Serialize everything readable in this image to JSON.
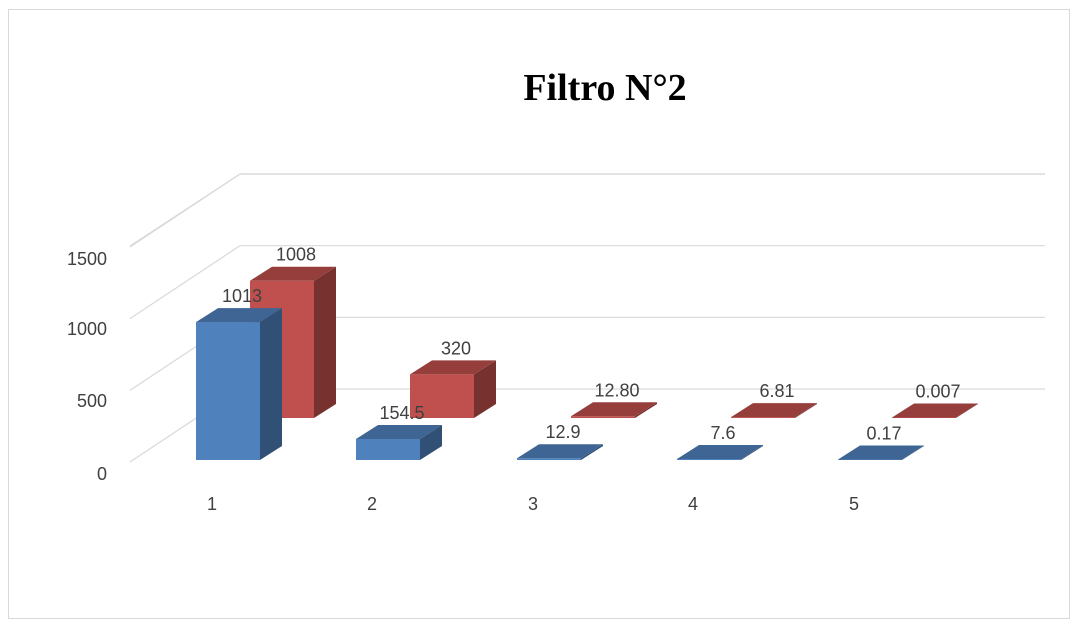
{
  "chart_data": {
    "type": "bar",
    "title": "Filtro N°2",
    "categories": [
      "1",
      "2",
      "3",
      "4",
      "5"
    ],
    "y_ticks": [
      "0",
      "500",
      "1000",
      "1500"
    ],
    "ylim": [
      0,
      1500
    ],
    "grid": true,
    "series": [
      {
        "values": [
          1013,
          154.5,
          12.9,
          7.6,
          0.17
        ],
        "labels": [
          "1013",
          "154.5",
          "12.9",
          "7.6",
          "0.17"
        ],
        "color": "#4f81bd"
      },
      {
        "values": [
          1008,
          320,
          12.8,
          6.81,
          0.007
        ],
        "labels": [
          "1008",
          "320",
          "12.80",
          "6.81",
          "0.007"
        ],
        "color": "#c0504d"
      }
    ]
  }
}
